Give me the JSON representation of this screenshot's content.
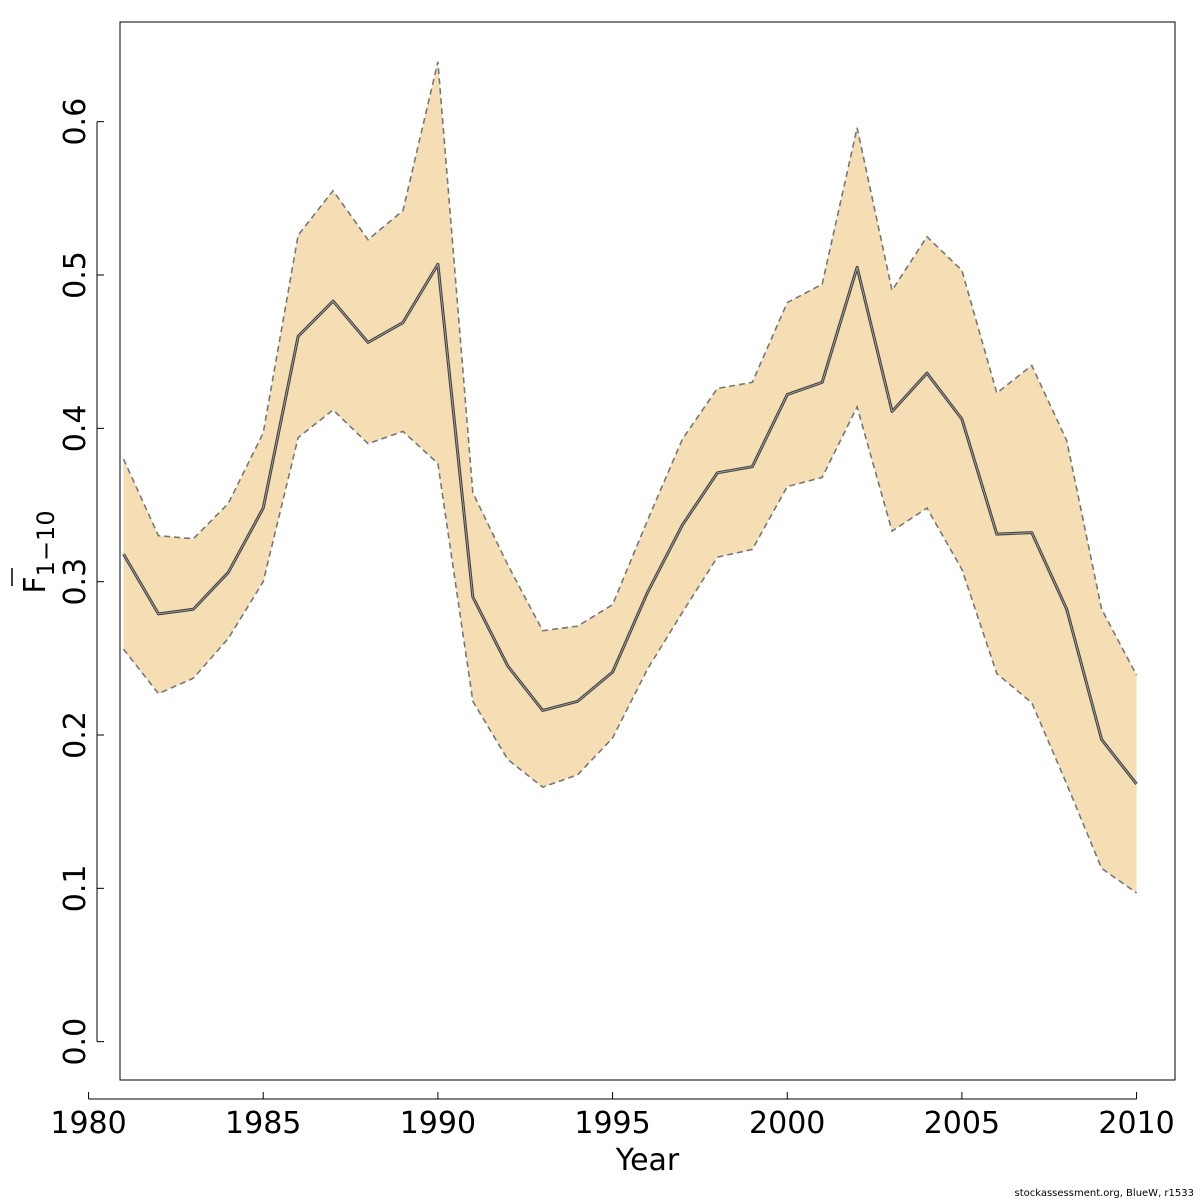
{
  "chart_data": {
    "type": "area",
    "title": "",
    "xlabel": "Year",
    "ylabel_main": "F",
    "ylabel_sub": "1−10",
    "xlim": [
      1980.9,
      2011.1
    ],
    "ylim": [
      -0.025,
      0.665
    ],
    "x_ticks": [
      1980,
      1985,
      1990,
      1995,
      2000,
      2005,
      2010
    ],
    "x_tick_labels": [
      "1980",
      "1985",
      "1990",
      "1995",
      "2000",
      "2005",
      "2010"
    ],
    "y_ticks": [
      0.0,
      0.1,
      0.2,
      0.3,
      0.4,
      0.5,
      0.6
    ],
    "y_tick_labels": [
      "0.0",
      "0.1",
      "0.2",
      "0.3",
      "0.4",
      "0.5",
      "0.6"
    ],
    "x": [
      1981,
      1982,
      1983,
      1984,
      1985,
      1986,
      1987,
      1988,
      1989,
      1990,
      1991,
      1992,
      1993,
      1994,
      1995,
      1996,
      1997,
      1998,
      1999,
      2000,
      2001,
      2002,
      2003,
      2004,
      2005,
      2006,
      2007,
      2008,
      2009,
      2010
    ],
    "series": [
      {
        "name": "estimate",
        "values": [
          0.318,
          0.279,
          0.282,
          0.306,
          0.348,
          0.46,
          0.483,
          0.456,
          0.469,
          0.507,
          0.29,
          0.245,
          0.216,
          0.222,
          0.241,
          0.293,
          0.337,
          0.371,
          0.375,
          0.422,
          0.43,
          0.505,
          0.411,
          0.436,
          0.406,
          0.331,
          0.332,
          0.282,
          0.197,
          0.168
        ]
      },
      {
        "name": "upper",
        "values": [
          0.38,
          0.33,
          0.328,
          0.351,
          0.397,
          0.526,
          0.555,
          0.523,
          0.542,
          0.639,
          0.358,
          0.311,
          0.268,
          0.271,
          0.285,
          0.34,
          0.393,
          0.426,
          0.43,
          0.482,
          0.494,
          0.596,
          0.49,
          0.525,
          0.503,
          0.423,
          0.441,
          0.392,
          0.282,
          0.239
        ]
      },
      {
        "name": "lower",
        "values": [
          0.256,
          0.227,
          0.237,
          0.263,
          0.3,
          0.394,
          0.412,
          0.39,
          0.398,
          0.377,
          0.222,
          0.184,
          0.166,
          0.174,
          0.198,
          0.243,
          0.28,
          0.316,
          0.321,
          0.362,
          0.368,
          0.414,
          0.333,
          0.348,
          0.308,
          0.24,
          0.221,
          0.168,
          0.113,
          0.097
        ]
      }
    ],
    "grid": false,
    "colors": {
      "band": "#F5DEB3",
      "band_border": "#777777",
      "line": "#444444",
      "axis": "#000000"
    }
  },
  "footer": {
    "credit": "stockassessment.org, BlueW, r1533"
  }
}
